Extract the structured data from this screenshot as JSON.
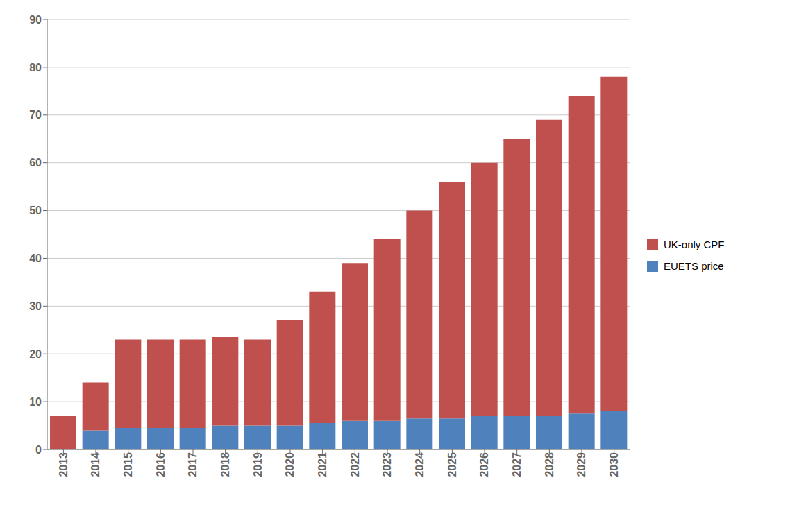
{
  "chart_data": {
    "type": "bar",
    "stacked": true,
    "categories": [
      "2013",
      "2014",
      "2015",
      "2016",
      "2017",
      "2018",
      "2019",
      "2020",
      "2021",
      "2022",
      "2023",
      "2024",
      "2025",
      "2026",
      "2027",
      "2028",
      "2029",
      "2030"
    ],
    "series": [
      {
        "name": "EUETS price",
        "color": "#4F81BD",
        "values": [
          0,
          4,
          4.5,
          4.5,
          4.5,
          5,
          5,
          5,
          5.5,
          6,
          6,
          6.5,
          6.5,
          7,
          7,
          7,
          7.5,
          8
        ]
      },
      {
        "name": "UK-only CPF",
        "color": "#C0504D",
        "values": [
          7,
          10,
          18.5,
          18.5,
          18.5,
          18.5,
          18,
          22,
          27.5,
          33,
          38,
          43.5,
          49.5,
          53,
          58,
          62,
          66.5,
          70
        ]
      }
    ],
    "ylim": [
      0,
      90
    ],
    "yticks": [
      0,
      10,
      20,
      30,
      40,
      50,
      60,
      70,
      80,
      90
    ],
    "grid": true,
    "legend": "right"
  }
}
